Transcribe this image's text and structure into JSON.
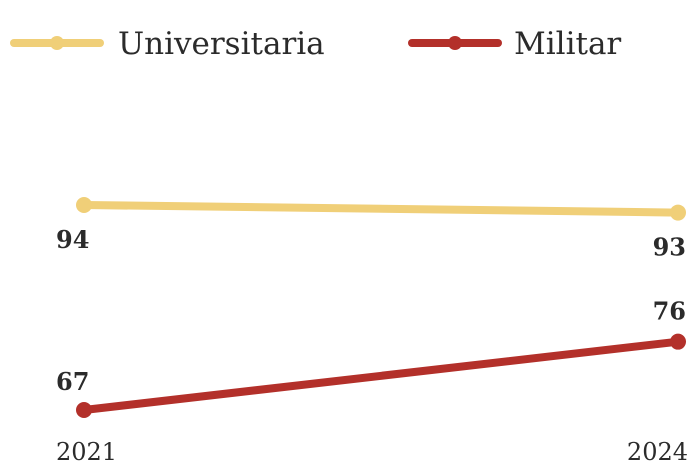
{
  "chart_data": {
    "type": "line",
    "title": "",
    "xlabel": "",
    "ylabel": "",
    "categories": [
      "2021",
      "2024"
    ],
    "ylim": [
      55,
      105
    ],
    "grid": false,
    "legend_position": "top-left",
    "series": [
      {
        "name": "Universitaria",
        "values": [
          94,
          93
        ],
        "color": "#f0cf78"
      },
      {
        "name": "Militar",
        "values": [
          67,
          76
        ],
        "color": "#b3302a"
      }
    ]
  }
}
